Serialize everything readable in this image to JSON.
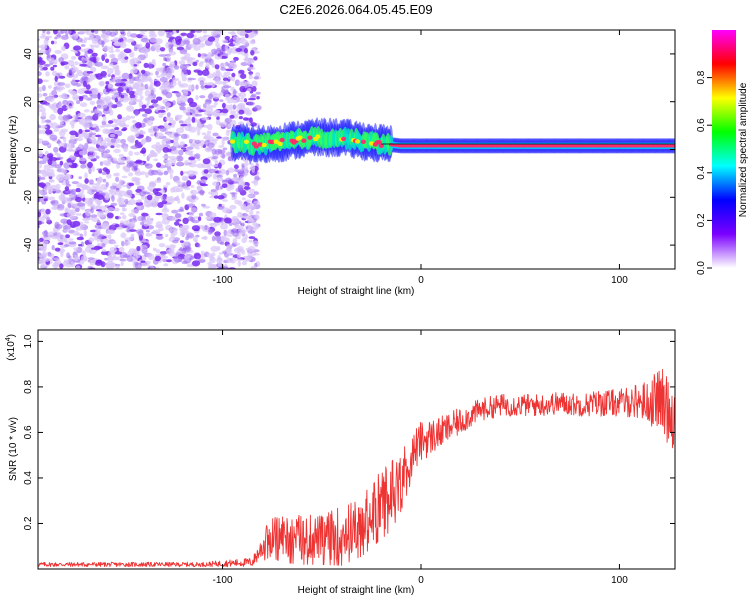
{
  "title": "C2E6.2026.064.05.45.E09",
  "chart_data": [
    {
      "type": "heatmap",
      "title": "C2E6.2026.064.05.45.E09",
      "xlabel": "Height of straight line (km)",
      "ylabel": "Frequency (Hz)",
      "xlim": [
        -193,
        128
      ],
      "ylim": [
        -50,
        50
      ],
      "xticks": [
        -100,
        0,
        100
      ],
      "xtick_labels": [
        "-100",
        "0",
        "100"
      ],
      "yticks": [
        -40,
        -20,
        0,
        20,
        40
      ],
      "ytick_labels": [
        "-40",
        "-20",
        "0",
        "20",
        "40"
      ],
      "noise_region_x": [
        -193,
        -85
      ],
      "signal_band": [
        {
          "x": -95,
          "freq": 3
        },
        {
          "x": -80,
          "freq": 2
        },
        {
          "x": -70,
          "freq": 3
        },
        {
          "x": -55,
          "freq": 5
        },
        {
          "x": -40,
          "freq": 5
        },
        {
          "x": -25,
          "freq": 3
        },
        {
          "x": -10,
          "freq": 1.5
        },
        {
          "x": 0,
          "freq": 1.5
        },
        {
          "x": 50,
          "freq": 1.5
        },
        {
          "x": 100,
          "freq": 1.5
        },
        {
          "x": 128,
          "freq": 1.5
        }
      ],
      "colorbar": {
        "label": "Normalized spectral amplitude",
        "range": [
          0,
          1
        ],
        "ticks": [
          0.0,
          0.2,
          0.4,
          0.6,
          0.8
        ],
        "tick_labels": [
          "0.0",
          "0.2",
          "0.4",
          "0.6",
          "0.8"
        ],
        "colors": [
          "#ffffff",
          "#7a00ff",
          "#0000ff",
          "#00ffff",
          "#00ff00",
          "#ffff00",
          "#ff0000",
          "#ff00ff"
        ]
      },
      "colors": {
        "noise": "#7a2cf0",
        "noise_light": "#d8c4f8",
        "band_core": "#ff2a6a",
        "band_mid": "#00e0a0",
        "band_edge": "#2020ff"
      }
    },
    {
      "type": "line",
      "xlabel": "Height of straight line (km)",
      "ylabel": "SNR (10 * v/v)",
      "scale_label": "(x10",
      "scale_exponent": "4",
      "scale_suffix": ")",
      "xlim": [
        -193,
        128
      ],
      "ylim": [
        0,
        1.05
      ],
      "xticks": [
        -100,
        0,
        100
      ],
      "xtick_labels": [
        "-100",
        "0",
        "100"
      ],
      "yticks": [
        0.2,
        0.4,
        0.6,
        0.8,
        1.0
      ],
      "ytick_labels": [
        "0.2",
        "0.4",
        "0.6",
        "0.8",
        "1.0"
      ],
      "color": "#ee3333",
      "series": [
        {
          "name": "SNR",
          "x": [
            -193,
            -150,
            -110,
            -85,
            -76,
            -70,
            -60,
            -50,
            -40,
            -30,
            -20,
            -15,
            -10,
            -5,
            0,
            10,
            20,
            30,
            40,
            50,
            60,
            70,
            80,
            90,
            100,
            110,
            115,
            120,
            125,
            128
          ],
          "y": [
            0.02,
            0.02,
            0.02,
            0.03,
            0.15,
            0.15,
            0.14,
            0.14,
            0.16,
            0.2,
            0.3,
            0.35,
            0.4,
            0.5,
            0.56,
            0.6,
            0.65,
            0.7,
            0.72,
            0.72,
            0.72,
            0.73,
            0.72,
            0.73,
            0.73,
            0.74,
            0.73,
            0.75,
            0.7,
            0.68
          ],
          "noise": [
            0.01,
            0.01,
            0.01,
            0.02,
            0.08,
            0.1,
            0.1,
            0.1,
            0.12,
            0.12,
            0.14,
            0.15,
            0.12,
            0.1,
            0.09,
            0.07,
            0.06,
            0.05,
            0.05,
            0.05,
            0.05,
            0.05,
            0.05,
            0.06,
            0.06,
            0.08,
            0.1,
            0.14,
            0.16,
            0.16
          ]
        }
      ]
    }
  ]
}
